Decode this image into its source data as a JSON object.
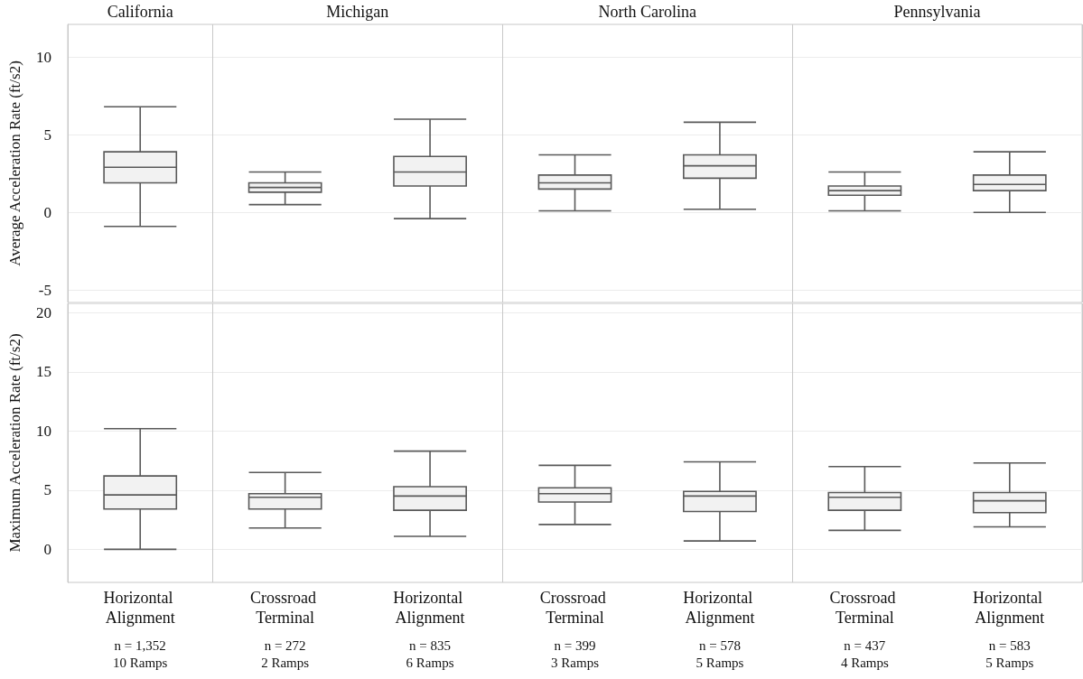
{
  "chart_data": [
    {
      "type": "box",
      "ylabel": "Average Acceleration Rate (ft/s2)",
      "categories": [
        null,
        null,
        null,
        null,
        null,
        null,
        null
      ],
      "annotations": [
        "California",
        "Michigan",
        "North Carolina",
        "Pennsylvania"
      ],
      "ylim": [
        -5.8,
        12.1
      ],
      "yticks": [
        -5,
        0,
        5,
        10
      ],
      "grid": true,
      "series": [
        {
          "color": "#595959",
          "boxes": [
            {
              "low": -0.9,
              "q1": 1.9,
              "median": 2.9,
              "q3": 3.9,
              "high": 6.8
            },
            {
              "low": 0.5,
              "q1": 1.3,
              "median": 1.6,
              "q3": 1.9,
              "high": 2.6
            },
            {
              "low": -0.4,
              "q1": 1.7,
              "median": 2.6,
              "q3": 3.6,
              "high": 6.0
            },
            {
              "low": 0.1,
              "q1": 1.5,
              "median": 1.9,
              "q3": 2.4,
              "high": 3.7
            },
            {
              "low": 0.2,
              "q1": 2.2,
              "median": 3.0,
              "q3": 3.7,
              "high": 5.8
            },
            {
              "low": 0.1,
              "q1": 1.1,
              "median": 1.4,
              "q3": 1.7,
              "high": 2.6
            },
            {
              "low": 0.0,
              "q1": 1.4,
              "median": 1.8,
              "q3": 2.4,
              "high": 3.9
            }
          ]
        }
      ]
    },
    {
      "type": "box",
      "ylabel": "Maximum Acceleration Rate (ft/s2)",
      "categories": [
        "Horizontal Alignment",
        "Crossroad Terminal",
        "Horizontal Alignment",
        "Crossroad Terminal",
        "Horizontal Alignment",
        "Crossroad Terminal",
        "Horizontal Alignment"
      ],
      "ylim": [
        -2.8,
        20.8
      ],
      "yticks": [
        0,
        5,
        10,
        15,
        20
      ],
      "grid": true,
      "annotations": [
        "n = 1,352\n10 Ramps",
        "n = 272\n2 Ramps",
        "n = 835\n6 Ramps",
        "n = 399\n3 Ramps",
        "n = 578\n5 Ramps",
        "n = 437\n4 Ramps",
        "n = 583\n5 Ramps"
      ],
      "series": [
        {
          "color": "#595959",
          "boxes": [
            {
              "low": 0.0,
              "q1": 3.4,
              "median": 4.6,
              "q3": 6.2,
              "high": 10.2
            },
            {
              "low": 1.8,
              "q1": 3.4,
              "median": 4.4,
              "q3": 4.7,
              "high": 6.5
            },
            {
              "low": 1.1,
              "q1": 3.3,
              "median": 4.5,
              "q3": 5.3,
              "high": 8.3
            },
            {
              "low": 2.1,
              "q1": 4.0,
              "median": 4.7,
              "q3": 5.2,
              "high": 7.1
            },
            {
              "low": 0.7,
              "q1": 3.2,
              "median": 4.5,
              "q3": 4.9,
              "high": 7.4
            },
            {
              "low": 1.6,
              "q1": 3.3,
              "median": 4.4,
              "q3": 4.8,
              "high": 7.0
            },
            {
              "low": 1.9,
              "q1": 3.1,
              "median": 4.1,
              "q3": 4.8,
              "high": 7.3
            }
          ]
        }
      ]
    }
  ]
}
